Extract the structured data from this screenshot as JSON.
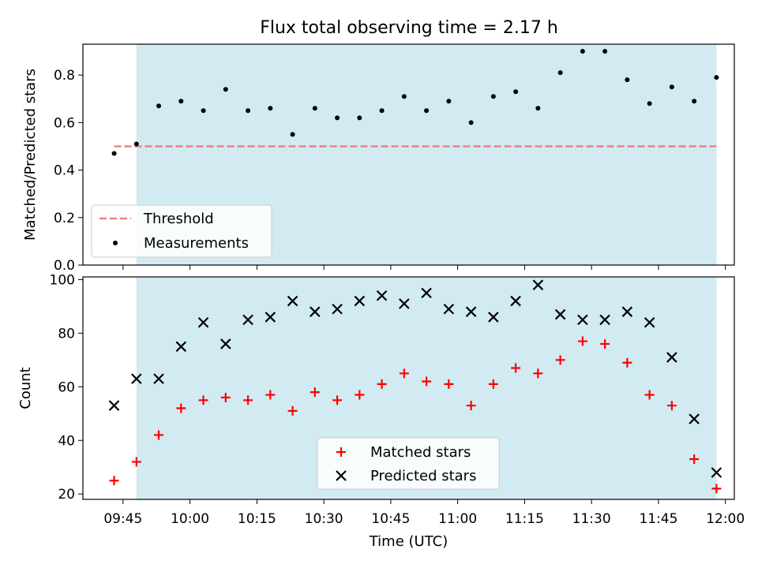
{
  "title": "Flux total observing time = 2.17 h",
  "chart_data": [
    {
      "type": "scatter",
      "ylabel": "Matched/Predicted stars",
      "ylim": [
        0,
        0.93
      ],
      "yticks": [
        0.0,
        0.2,
        0.4,
        0.6,
        0.8
      ],
      "ytick_labels": [
        "0.0",
        "0.2",
        "0.4",
        "0.6",
        "0.8"
      ],
      "xlim": [
        "09:36",
        "12:02"
      ],
      "shaded_span": [
        "09:48",
        "11:58"
      ],
      "legend": {
        "position": "lower-left",
        "entries": [
          "Threshold",
          "Measurements"
        ]
      },
      "series": [
        {
          "name": "Threshold",
          "style": "dashed-line",
          "color": "#f08080",
          "x": [
            "09:43",
            "11:58"
          ],
          "y": [
            0.5,
            0.5
          ]
        },
        {
          "name": "Measurements",
          "style": "dot",
          "color": "#000000",
          "x": [
            "09:43",
            "09:48",
            "09:53",
            "09:58",
            "10:03",
            "10:08",
            "10:13",
            "10:18",
            "10:23",
            "10:28",
            "10:33",
            "10:38",
            "10:43",
            "10:48",
            "10:53",
            "10:58",
            "11:03",
            "11:08",
            "11:13",
            "11:18",
            "11:23",
            "11:28",
            "11:33",
            "11:38",
            "11:43",
            "11:48",
            "11:53",
            "11:58"
          ],
          "y": [
            0.47,
            0.51,
            0.67,
            0.69,
            0.65,
            0.74,
            0.65,
            0.66,
            0.55,
            0.66,
            0.62,
            0.62,
            0.65,
            0.71,
            0.65,
            0.69,
            0.6,
            0.71,
            0.73,
            0.66,
            0.81,
            0.9,
            0.9,
            0.78,
            0.68,
            0.75,
            0.69,
            0.79
          ]
        }
      ]
    },
    {
      "type": "scatter",
      "ylabel": "Count",
      "xlabel": "Time (UTC)",
      "ylim": [
        18,
        101
      ],
      "yticks": [
        20,
        40,
        60,
        80,
        100
      ],
      "ytick_labels": [
        "20",
        "40",
        "60",
        "80",
        "100"
      ],
      "xlim": [
        "09:36",
        "12:02"
      ],
      "xticks": [
        "09:45",
        "10:00",
        "10:15",
        "10:30",
        "10:45",
        "11:00",
        "11:15",
        "11:30",
        "11:45",
        "12:00"
      ],
      "shaded_span": [
        "09:48",
        "11:58"
      ],
      "legend": {
        "position": "lower-center",
        "entries": [
          "Matched stars",
          "Predicted stars"
        ]
      },
      "series": [
        {
          "name": "Matched stars",
          "marker": "plus",
          "color": "#ff0000",
          "x": [
            "09:43",
            "09:48",
            "09:53",
            "09:58",
            "10:03",
            "10:08",
            "10:13",
            "10:18",
            "10:23",
            "10:28",
            "10:33",
            "10:38",
            "10:43",
            "10:48",
            "10:53",
            "10:58",
            "11:03",
            "11:08",
            "11:13",
            "11:18",
            "11:23",
            "11:28",
            "11:33",
            "11:38",
            "11:43",
            "11:48",
            "11:53",
            "11:58"
          ],
          "y": [
            25,
            32,
            42,
            52,
            55,
            56,
            55,
            57,
            51,
            58,
            55,
            57,
            61,
            65,
            62,
            61,
            53,
            61,
            67,
            65,
            70,
            77,
            76,
            69,
            57,
            53,
            33,
            22
          ]
        },
        {
          "name": "Predicted stars",
          "marker": "x",
          "color": "#000000",
          "x": [
            "09:43",
            "09:48",
            "09:53",
            "09:58",
            "10:03",
            "10:08",
            "10:13",
            "10:18",
            "10:23",
            "10:28",
            "10:33",
            "10:38",
            "10:43",
            "10:48",
            "10:53",
            "10:58",
            "11:03",
            "11:08",
            "11:13",
            "11:18",
            "11:23",
            "11:28",
            "11:33",
            "11:38",
            "11:43",
            "11:48",
            "11:53",
            "11:58"
          ],
          "y": [
            53,
            63,
            63,
            75,
            84,
            76,
            85,
            86,
            92,
            88,
            89,
            92,
            94,
            91,
            95,
            89,
            88,
            86,
            92,
            98,
            87,
            85,
            85,
            88,
            84,
            71,
            48,
            28
          ]
        }
      ]
    }
  ],
  "colors": {
    "shade": "#add8e6",
    "threshold": "#f08080",
    "matched": "#ff0000",
    "predicted": "#000000"
  }
}
